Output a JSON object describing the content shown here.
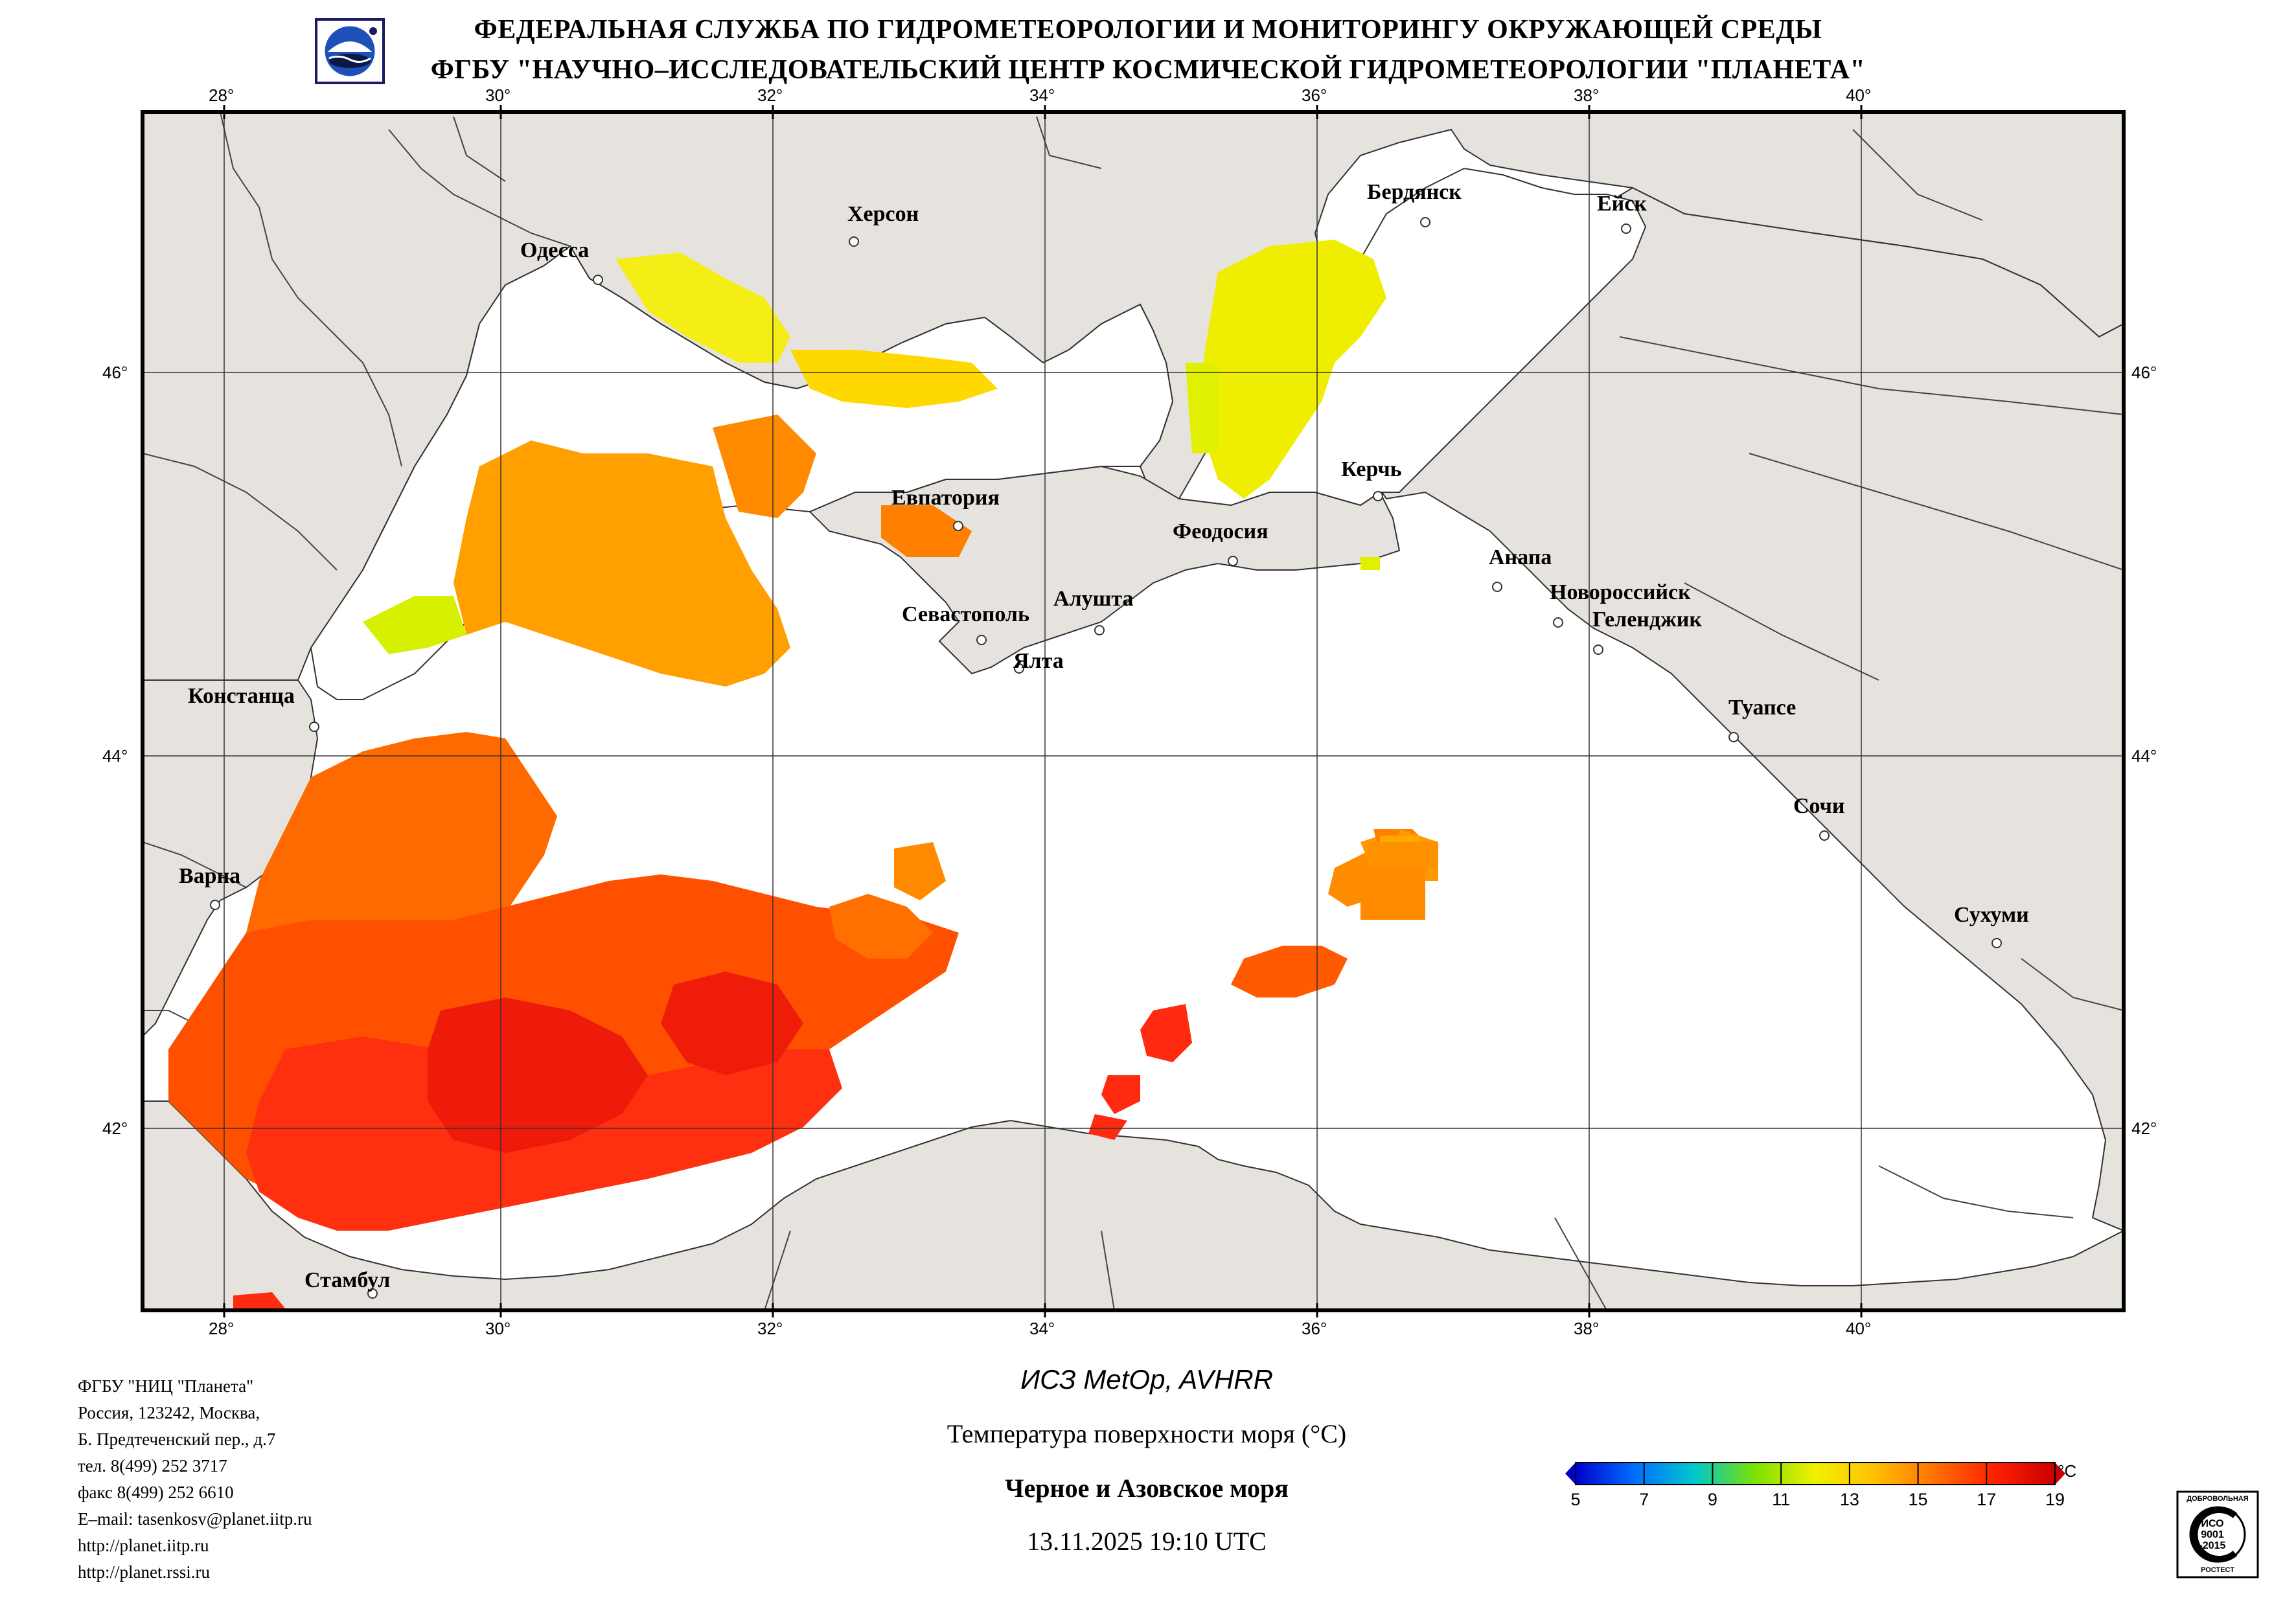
{
  "header": {
    "line1": "ФЕДЕРАЛЬНАЯ СЛУЖБА ПО ГИДРОМЕТЕОРОЛОГИИ И МОНИТОРИНГУ ОКРУЖАЮЩЕЙ СРЕДЫ",
    "line2": "ФГБУ \"НАУЧНО–ИССЛЕДОВАТЕЛЬСКИЙ ЦЕНТР КОСМИЧЕСКОЙ ГИДРОМЕТЕОРОЛОГИИ \"ПЛАНЕТА\""
  },
  "map": {
    "lon_labels": [
      "28°",
      "30°",
      "32°",
      "34°",
      "36°",
      "38°",
      "40°"
    ],
    "lat_labels": [
      "46°",
      "44°",
      "42°"
    ],
    "cities": {
      "odessa": "Одесса",
      "kherson": "Херсон",
      "berdyansk": "Бердянск",
      "yeysk": "Ейск",
      "evpatoria": "Евпатория",
      "kerch": "Керчь",
      "feodosia": "Феодосия",
      "anapa": "Анапа",
      "sevastopol": "Севастополь",
      "alushta": "Алушта",
      "novorossiysk": "Новороссийск",
      "gelendzhik": "Геленджик",
      "yalta": "Ялта",
      "constanta": "Констанца",
      "tuapse": "Туапсе",
      "sochi": "Сочи",
      "varna": "Варна",
      "sukhumi": "Сухуми",
      "istanbul": "Стамбул"
    }
  },
  "footer": {
    "org": [
      "ФГБУ \"НИЦ \"Планета\"",
      "Россия, 123242, Москва,",
      "Б. Предтеченский пер., д.7",
      "тел. 8(499) 252 3717",
      "факс 8(499) 252 6610",
      "E–mail: tasenkosv@planet.iitp.ru",
      "http://planet.iitp.ru",
      "http://planet.rssi.ru"
    ],
    "satellite": "ИСЗ MetOp, AVHRR",
    "product": "Температура поверхности моря (°С)",
    "region": "Черное и Азовское моря",
    "datetime": "13.11.2025 19:10 UTC"
  },
  "colorbar": {
    "unit": "°C",
    "ticks": [
      "5",
      "7",
      "9",
      "11",
      "13",
      "15",
      "17",
      "19"
    ],
    "tick_values": [
      5,
      7,
      9,
      11,
      13,
      15,
      17,
      19
    ],
    "range": [
      5,
      19
    ],
    "stops": [
      "#0000cc",
      "#0070ff",
      "#00c8c8",
      "#7de000",
      "#f0f000",
      "#ffc000",
      "#ff7000",
      "#ff2000",
      "#c80000"
    ]
  },
  "badge": {
    "top": "ДОБРОВОЛЬНАЯ",
    "mid1": "ИСО",
    "mid2": "9001",
    "mid3": "-2015",
    "bottom": "РОСТЕСТ"
  }
}
